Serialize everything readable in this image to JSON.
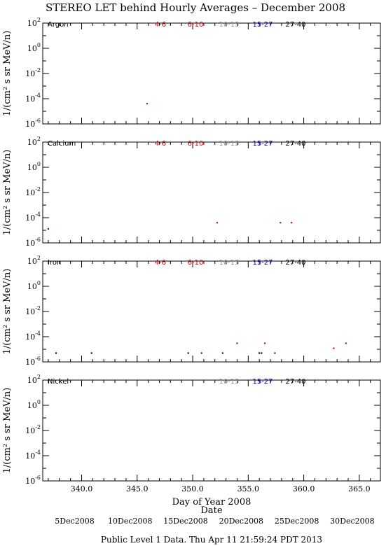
{
  "title": "STEREO LET behind Hourly Averages – December 2008",
  "footer": "Public Level 1 Data. Thu Apr 11 21:59:24 PDT 2013",
  "colors": {
    "4-6": "#cc0000",
    "6-10": "#ee0000",
    "10-15": "#999999",
    "15-27": "#0000ee",
    "27-40": "#000000"
  },
  "chart_data": [
    {
      "type": "scatter",
      "panel": "Argon",
      "xlabel": "",
      "ylabel": "1/(cm² s sr MeV/n)",
      "ylim_log10": [
        -6,
        2
      ],
      "xlim": [
        336.5,
        366.9
      ],
      "legend": [
        "4-6",
        "6-10",
        "10-15",
        "15-27",
        "27-40"
      ],
      "points": [
        {
          "x": 345.9,
          "y": 4e-05,
          "series": "4-6"
        }
      ]
    },
    {
      "type": "scatter",
      "panel": "Calcium",
      "xlabel": "",
      "ylabel": "1/(cm² s sr MeV/n)",
      "ylim_log10": [
        -6,
        2
      ],
      "xlim": [
        336.5,
        366.9
      ],
      "legend": [
        "4-6",
        "6-10",
        "10-15",
        "15-27",
        "27-40"
      ],
      "points": [
        {
          "x": 337.0,
          "y": 1.3e-05,
          "series": "15-27"
        },
        {
          "x": 352.2,
          "y": 4e-05,
          "series": "4-6"
        },
        {
          "x": 357.9,
          "y": 4e-05,
          "series": "4-6"
        },
        {
          "x": 358.9,
          "y": 4e-05,
          "series": "4-6"
        }
      ]
    },
    {
      "type": "scatter",
      "panel": "Iron",
      "xlabel": "",
      "ylabel": "1/(cm² s sr MeV/n)",
      "ylim_log10": [
        -6,
        2
      ],
      "xlim": [
        336.5,
        366.9
      ],
      "legend": [
        "4-6",
        "6-10",
        "10-15",
        "15-27",
        "27-40"
      ],
      "points": [
        {
          "x": 337.7,
          "y": 5e-06,
          "series": "27-40"
        },
        {
          "x": 340.9,
          "y": 5e-06,
          "series": "27-40"
        },
        {
          "x": 349.6,
          "y": 5e-06,
          "series": "27-40"
        },
        {
          "x": 350.8,
          "y": 5e-06,
          "series": "15-27"
        },
        {
          "x": 352.7,
          "y": 5e-06,
          "series": "27-40"
        },
        {
          "x": 354.0,
          "y": 3e-05,
          "series": "4-6"
        },
        {
          "x": 356.0,
          "y": 5e-06,
          "series": "27-40"
        },
        {
          "x": 356.2,
          "y": 5e-06,
          "series": "27-40"
        },
        {
          "x": 356.5,
          "y": 3e-05,
          "series": "4-6"
        },
        {
          "x": 357.4,
          "y": 5e-06,
          "series": "15-27"
        },
        {
          "x": 362.7,
          "y": 1.2e-05,
          "series": "6-10"
        },
        {
          "x": 363.8,
          "y": 3e-05,
          "series": "4-6"
        }
      ]
    },
    {
      "type": "scatter",
      "panel": "Nickel",
      "xlabel": "Day of Year 2008",
      "ylabel": "1/(cm² s sr MeV/n)",
      "ylim_log10": [
        -6,
        2
      ],
      "xlim": [
        336.5,
        366.9
      ],
      "legend": [
        "10-15",
        "15-27",
        "27-40"
      ],
      "points": []
    }
  ],
  "x_ticks": [
    340.0,
    345.0,
    350.0,
    355.0,
    360.0,
    365.0
  ],
  "x_tick_labels": [
    "340.0",
    "345.0",
    "350.0",
    "355.0",
    "360.0",
    "365.0"
  ],
  "y_ticks_log10": [
    2,
    0,
    -2,
    -4,
    -6
  ],
  "x_axis_label": "Day of Year 2008",
  "date_axis_label": "Date",
  "date_labels": [
    {
      "label": "5Dec2008",
      "doy": 340.0
    },
    {
      "label": "10Dec2008",
      "doy": 345.0
    },
    {
      "label": "15Dec2008",
      "doy": 350.0
    },
    {
      "label": "20Dec2008",
      "doy": 355.0
    },
    {
      "label": "25Dec2008",
      "doy": 360.0
    },
    {
      "label": "30Dec2008",
      "doy": 365.0
    }
  ]
}
